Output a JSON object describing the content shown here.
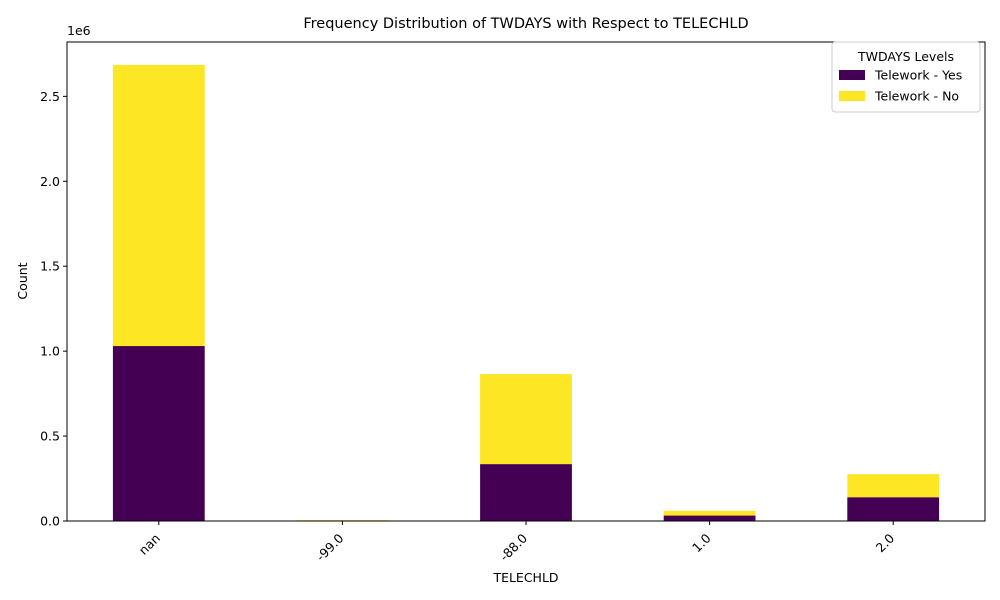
{
  "chart_data": {
    "type": "bar",
    "stacked": true,
    "title": "Frequency Distribution of TWDAYS with Respect to TELECHLD",
    "xlabel": "TELECHLD",
    "ylabel": "Count",
    "y_offset_label": "1e6",
    "categories": [
      "nan",
      "-99.0",
      "-88.0",
      "1.0",
      "2.0"
    ],
    "series": [
      {
        "name": "Telework - Yes",
        "color": "#440154",
        "values": [
          1030000,
          3000,
          335000,
          32000,
          140000
        ]
      },
      {
        "name": "Telework - No",
        "color": "#fde725",
        "values": [
          1655000,
          2000,
          530000,
          28000,
          136000
        ]
      }
    ],
    "ylim": [
      0,
      2820000
    ],
    "y_ticks": [
      0,
      500000,
      1000000,
      1500000,
      2000000,
      2500000
    ],
    "y_tick_labels": [
      "0.0",
      "0.5",
      "1.0",
      "1.5",
      "2.0",
      "2.5"
    ],
    "legend": {
      "title": "TWDAYS Levels",
      "position": "top-right"
    },
    "grid": false
  }
}
